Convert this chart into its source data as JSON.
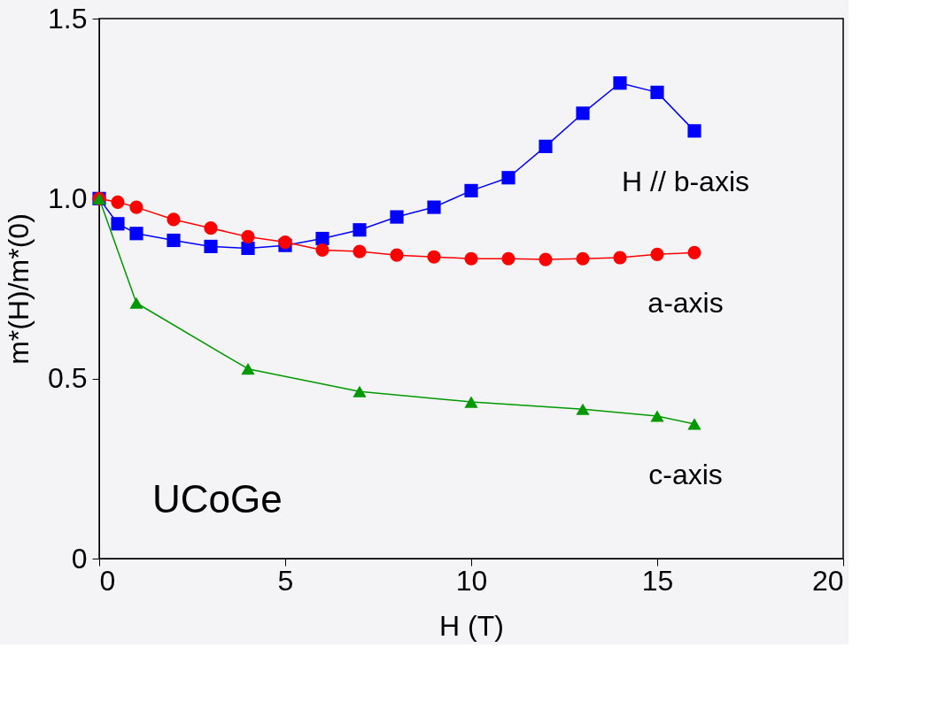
{
  "chart_data": {
    "type": "line",
    "xlabel": "H (T)",
    "ylabel": "m*(H)/m*(0)",
    "xlim": [
      0,
      20
    ],
    "ylim": [
      0,
      1.5
    ],
    "xticks": [
      0,
      5,
      10,
      15,
      20
    ],
    "yticks": [
      0,
      0.5,
      {
        "value": 1,
        "label": "1.0"
      },
      1.5
    ],
    "grid": false,
    "legend": false,
    "annotations": [
      "UCoGe"
    ],
    "series": [
      {
        "name": "H // b-axis",
        "color": "#0000ff",
        "marker": "square",
        "x": [
          0,
          0.5,
          1,
          2,
          3,
          4,
          5,
          6,
          7,
          8,
          9,
          10,
          11,
          12,
          13,
          14,
          15,
          16
        ],
        "values": [
          1.0,
          0.93,
          0.903,
          0.884,
          0.867,
          0.862,
          0.87,
          0.889,
          0.913,
          0.949,
          0.976,
          1.022,
          1.058,
          1.145,
          1.237,
          1.321,
          1.295,
          1.188
        ]
      },
      {
        "name": "a-axis",
        "color": "#ff0000",
        "marker": "circle",
        "x": [
          0,
          0.5,
          1,
          2,
          3,
          4,
          5,
          6,
          7,
          8,
          9,
          10,
          11,
          12,
          13,
          14,
          15,
          16
        ],
        "values": [
          1.0,
          0.99,
          0.976,
          0.942,
          0.918,
          0.894,
          0.879,
          0.857,
          0.853,
          0.843,
          0.838,
          0.833,
          0.833,
          0.831,
          0.833,
          0.836,
          0.845,
          0.85
        ]
      },
      {
        "name": "c-axis",
        "color": "#009900",
        "marker": "triangle",
        "x": [
          0,
          1,
          4,
          7,
          10,
          13,
          15,
          16
        ],
        "values": [
          1.0,
          0.71,
          0.527,
          0.464,
          0.435,
          0.415,
          0.396,
          0.374
        ]
      }
    ]
  }
}
